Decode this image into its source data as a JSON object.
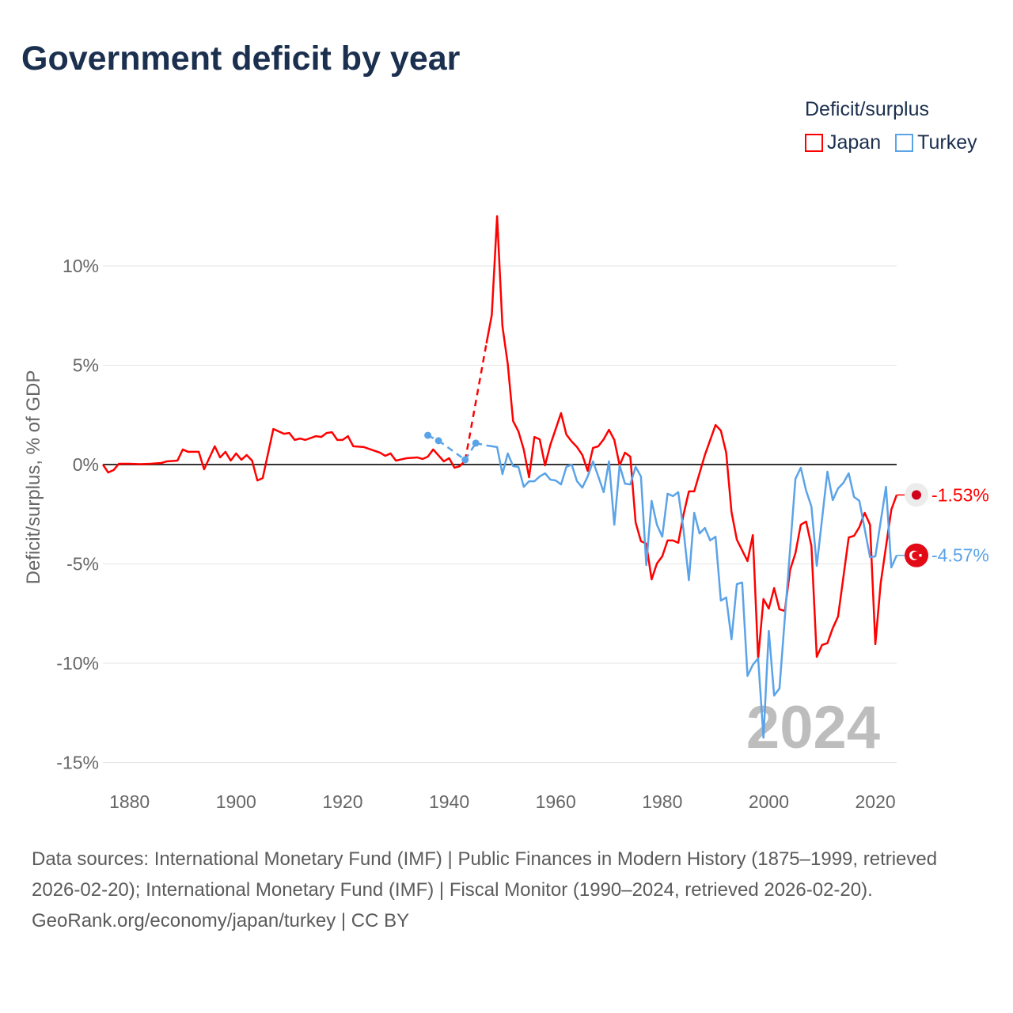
{
  "title": "Government deficit by year",
  "legend": {
    "title": "Deficit/surplus",
    "items": [
      {
        "label": "Japan",
        "color": "#ff0000"
      },
      {
        "label": "Turkey",
        "color": "#5ba3e8"
      }
    ]
  },
  "footer": {
    "sources": "Data sources: International Monetary Fund (IMF) | Public Finances in Modern History (1875–1999, retrieved 2026-02-20); International Monetary Fund (IMF) | Fiscal Monitor (1990–2024, retrieved 2026-02-20).",
    "credit": "GeoRank.org/economy/japan/turkey | CC BY"
  },
  "chart_data": {
    "type": "line",
    "title": "Government deficit by year",
    "xlabel": "",
    "ylabel": "Deficit/surplus, % of GDP",
    "xlim": [
      1875,
      2024
    ],
    "ylim": [
      -15,
      12.5
    ],
    "xticks": [
      1880,
      1900,
      1920,
      1940,
      1960,
      1980,
      2000,
      2020
    ],
    "yticks": [
      {
        "v": 10,
        "label": "10%"
      },
      {
        "v": 5,
        "label": "5%"
      },
      {
        "v": 0,
        "label": "0%"
      },
      {
        "v": -5,
        "label": "-5%"
      },
      {
        "v": -10,
        "label": "-10%"
      },
      {
        "v": -15,
        "label": "-15%"
      }
    ],
    "grid": true,
    "legend_position": "top-right",
    "year_annotation": "2024",
    "series": [
      {
        "name": "Japan",
        "color": "#ff0000",
        "end_label": "-1.53%",
        "end_value": -1.53,
        "flag": "japan-flag",
        "gaps": [
          [
            1943,
            1947
          ]
        ],
        "points": [
          [
            1875,
            0
          ],
          [
            1876,
            -0.4
          ],
          [
            1877,
            -0.28
          ],
          [
            1878,
            0.04
          ],
          [
            1880,
            0.04
          ],
          [
            1882,
            0.02
          ],
          [
            1884,
            0.04
          ],
          [
            1886,
            0.08
          ],
          [
            1887,
            0.16
          ],
          [
            1889,
            0.2
          ],
          [
            1890,
            0.76
          ],
          [
            1891,
            0.64
          ],
          [
            1893,
            0.64
          ],
          [
            1894,
            -0.24
          ],
          [
            1896,
            0.92
          ],
          [
            1897,
            0.36
          ],
          [
            1898,
            0.64
          ],
          [
            1899,
            0.2
          ],
          [
            1900,
            0.56
          ],
          [
            1901,
            0.24
          ],
          [
            1902,
            0.48
          ],
          [
            1903,
            0.2
          ],
          [
            1904,
            -0.8
          ],
          [
            1905,
            -0.68
          ],
          [
            1907,
            1.79
          ],
          [
            1909,
            1.55
          ],
          [
            1910,
            1.59
          ],
          [
            1911,
            1.24
          ],
          [
            1912,
            1.31
          ],
          [
            1913,
            1.24
          ],
          [
            1915,
            1.43
          ],
          [
            1916,
            1.39
          ],
          [
            1917,
            1.59
          ],
          [
            1918,
            1.63
          ],
          [
            1919,
            1.24
          ],
          [
            1920,
            1.24
          ],
          [
            1921,
            1.43
          ],
          [
            1922,
            0.92
          ],
          [
            1924,
            0.88
          ],
          [
            1927,
            0.6
          ],
          [
            1928,
            0.44
          ],
          [
            1929,
            0.56
          ],
          [
            1930,
            0.2
          ],
          [
            1932,
            0.32
          ],
          [
            1934,
            0.36
          ],
          [
            1935,
            0.28
          ],
          [
            1936,
            0.4
          ],
          [
            1937,
            0.76
          ],
          [
            1939,
            0.16
          ],
          [
            1940,
            0.32
          ],
          [
            1941,
            -0.16
          ],
          [
            1942,
            -0.08
          ],
          [
            1943,
            0.2
          ],
          [
            1947,
            6.1
          ],
          [
            1948,
            7.53
          ],
          [
            1949,
            12.5
          ],
          [
            1950,
            6.97
          ],
          [
            1951,
            5.06
          ],
          [
            1952,
            2.19
          ],
          [
            1953,
            1.67
          ],
          [
            1954,
            0.76
          ],
          [
            1955,
            -0.64
          ],
          [
            1956,
            1.39
          ],
          [
            1957,
            1.27
          ],
          [
            1958,
            -0.04
          ],
          [
            1959,
            1.0
          ],
          [
            1960,
            1.79
          ],
          [
            1961,
            2.59
          ],
          [
            1962,
            1.51
          ],
          [
            1963,
            1.16
          ],
          [
            1964,
            0.88
          ],
          [
            1965,
            0.48
          ],
          [
            1966,
            -0.32
          ],
          [
            1967,
            0.84
          ],
          [
            1968,
            0.92
          ],
          [
            1969,
            1.27
          ],
          [
            1970,
            1.75
          ],
          [
            1971,
            1.24
          ],
          [
            1972,
            -0.04
          ],
          [
            1973,
            0.6
          ],
          [
            1974,
            0.4
          ],
          [
            1975,
            -2.91
          ],
          [
            1976,
            -3.86
          ],
          [
            1977,
            -3.98
          ],
          [
            1978,
            -5.78
          ],
          [
            1979,
            -4.98
          ],
          [
            1980,
            -4.62
          ],
          [
            1981,
            -3.82
          ],
          [
            1982,
            -3.82
          ],
          [
            1983,
            -3.94
          ],
          [
            1984,
            -2.51
          ],
          [
            1985,
            -1.35
          ],
          [
            1986,
            -1.35
          ],
          [
            1988,
            0.48
          ],
          [
            1990,
            1.99
          ],
          [
            1991,
            1.71
          ],
          [
            1992,
            0.6
          ],
          [
            1993,
            -2.39
          ],
          [
            1994,
            -3.78
          ],
          [
            1996,
            -4.86
          ],
          [
            1997,
            -3.55
          ],
          [
            1998,
            -9.76
          ],
          [
            1999,
            -6.77
          ],
          [
            2000,
            -7.25
          ],
          [
            2001,
            -6.22
          ],
          [
            2002,
            -7.29
          ],
          [
            2003,
            -7.37
          ],
          [
            2004,
            -5.3
          ],
          [
            2005,
            -4.46
          ],
          [
            2006,
            -3.03
          ],
          [
            2007,
            -2.87
          ],
          [
            2008,
            -4.1
          ],
          [
            2009,
            -9.68
          ],
          [
            2010,
            -9.08
          ],
          [
            2011,
            -8.99
          ],
          [
            2012,
            -8.24
          ],
          [
            2013,
            -7.65
          ],
          [
            2015,
            -3.67
          ],
          [
            2016,
            -3.59
          ],
          [
            2017,
            -3.15
          ],
          [
            2018,
            -2.43
          ],
          [
            2019,
            -3.03
          ],
          [
            2020,
            -9.04
          ],
          [
            2021,
            -5.98
          ],
          [
            2023,
            -2.27
          ],
          [
            2024,
            -1.53
          ]
        ]
      },
      {
        "name": "Turkey",
        "color": "#5ba3e8",
        "end_label": "-4.57%",
        "end_value": -4.57,
        "flag": "turkey-flag",
        "gaps": [
          [
            1936,
            1938
          ],
          [
            1938,
            1943
          ],
          [
            1943,
            1945
          ],
          [
            1945,
            1947
          ]
        ],
        "dots": [
          1936,
          1938,
          1943,
          1945
        ],
        "points": [
          [
            1936,
            1.47
          ],
          [
            1938,
            1.2
          ],
          [
            1943,
            0.24
          ],
          [
            1945,
            1.08
          ],
          [
            1947,
            0.96
          ],
          [
            1949,
            0.88
          ],
          [
            1950,
            -0.48
          ],
          [
            1951,
            0.56
          ],
          [
            1952,
            -0.08
          ],
          [
            1953,
            -0.12
          ],
          [
            1954,
            -1.12
          ],
          [
            1955,
            -0.84
          ],
          [
            1956,
            -0.84
          ],
          [
            1957,
            -0.6
          ],
          [
            1958,
            -0.44
          ],
          [
            1959,
            -0.76
          ],
          [
            1960,
            -0.8
          ],
          [
            1961,
            -1.0
          ],
          [
            1962,
            -0.12
          ],
          [
            1963,
            0
          ],
          [
            1964,
            -0.84
          ],
          [
            1965,
            -1.16
          ],
          [
            1966,
            -0.6
          ],
          [
            1967,
            0.16
          ],
          [
            1968,
            -0.6
          ],
          [
            1969,
            -1.39
          ],
          [
            1970,
            0.16
          ],
          [
            1971,
            -3.03
          ],
          [
            1972,
            -0.04
          ],
          [
            1973,
            -0.96
          ],
          [
            1974,
            -1.0
          ],
          [
            1975,
            -0.12
          ],
          [
            1976,
            -0.6
          ],
          [
            1977,
            -5.06
          ],
          [
            1978,
            -1.83
          ],
          [
            1979,
            -3.03
          ],
          [
            1980,
            -3.63
          ],
          [
            1981,
            -1.47
          ],
          [
            1982,
            -1.59
          ],
          [
            1983,
            -1.39
          ],
          [
            1984,
            -3.31
          ],
          [
            1985,
            -5.82
          ],
          [
            1986,
            -2.43
          ],
          [
            1987,
            -3.47
          ],
          [
            1988,
            -3.19
          ],
          [
            1989,
            -3.82
          ],
          [
            1990,
            -3.63
          ],
          [
            1991,
            -6.85
          ],
          [
            1992,
            -6.69
          ],
          [
            1993,
            -8.8
          ],
          [
            1994,
            -6.02
          ],
          [
            1995,
            -5.94
          ],
          [
            1996,
            -10.64
          ],
          [
            1997,
            -10.08
          ],
          [
            1998,
            -9.76
          ],
          [
            1999,
            -13.75
          ],
          [
            2000,
            -8.37
          ],
          [
            2001,
            -11.63
          ],
          [
            2002,
            -11.27
          ],
          [
            2005,
            -0.72
          ],
          [
            2006,
            -0.16
          ],
          [
            2007,
            -1.31
          ],
          [
            2008,
            -2.11
          ],
          [
            2009,
            -5.1
          ],
          [
            2011,
            -0.36
          ],
          [
            2012,
            -1.79
          ],
          [
            2013,
            -1.2
          ],
          [
            2014,
            -0.92
          ],
          [
            2015,
            -0.44
          ],
          [
            2016,
            -1.63
          ],
          [
            2017,
            -1.83
          ],
          [
            2019,
            -4.66
          ],
          [
            2020,
            -4.62
          ],
          [
            2022,
            -1.12
          ],
          [
            2023,
            -5.18
          ],
          [
            2024,
            -4.57
          ]
        ]
      }
    ]
  }
}
